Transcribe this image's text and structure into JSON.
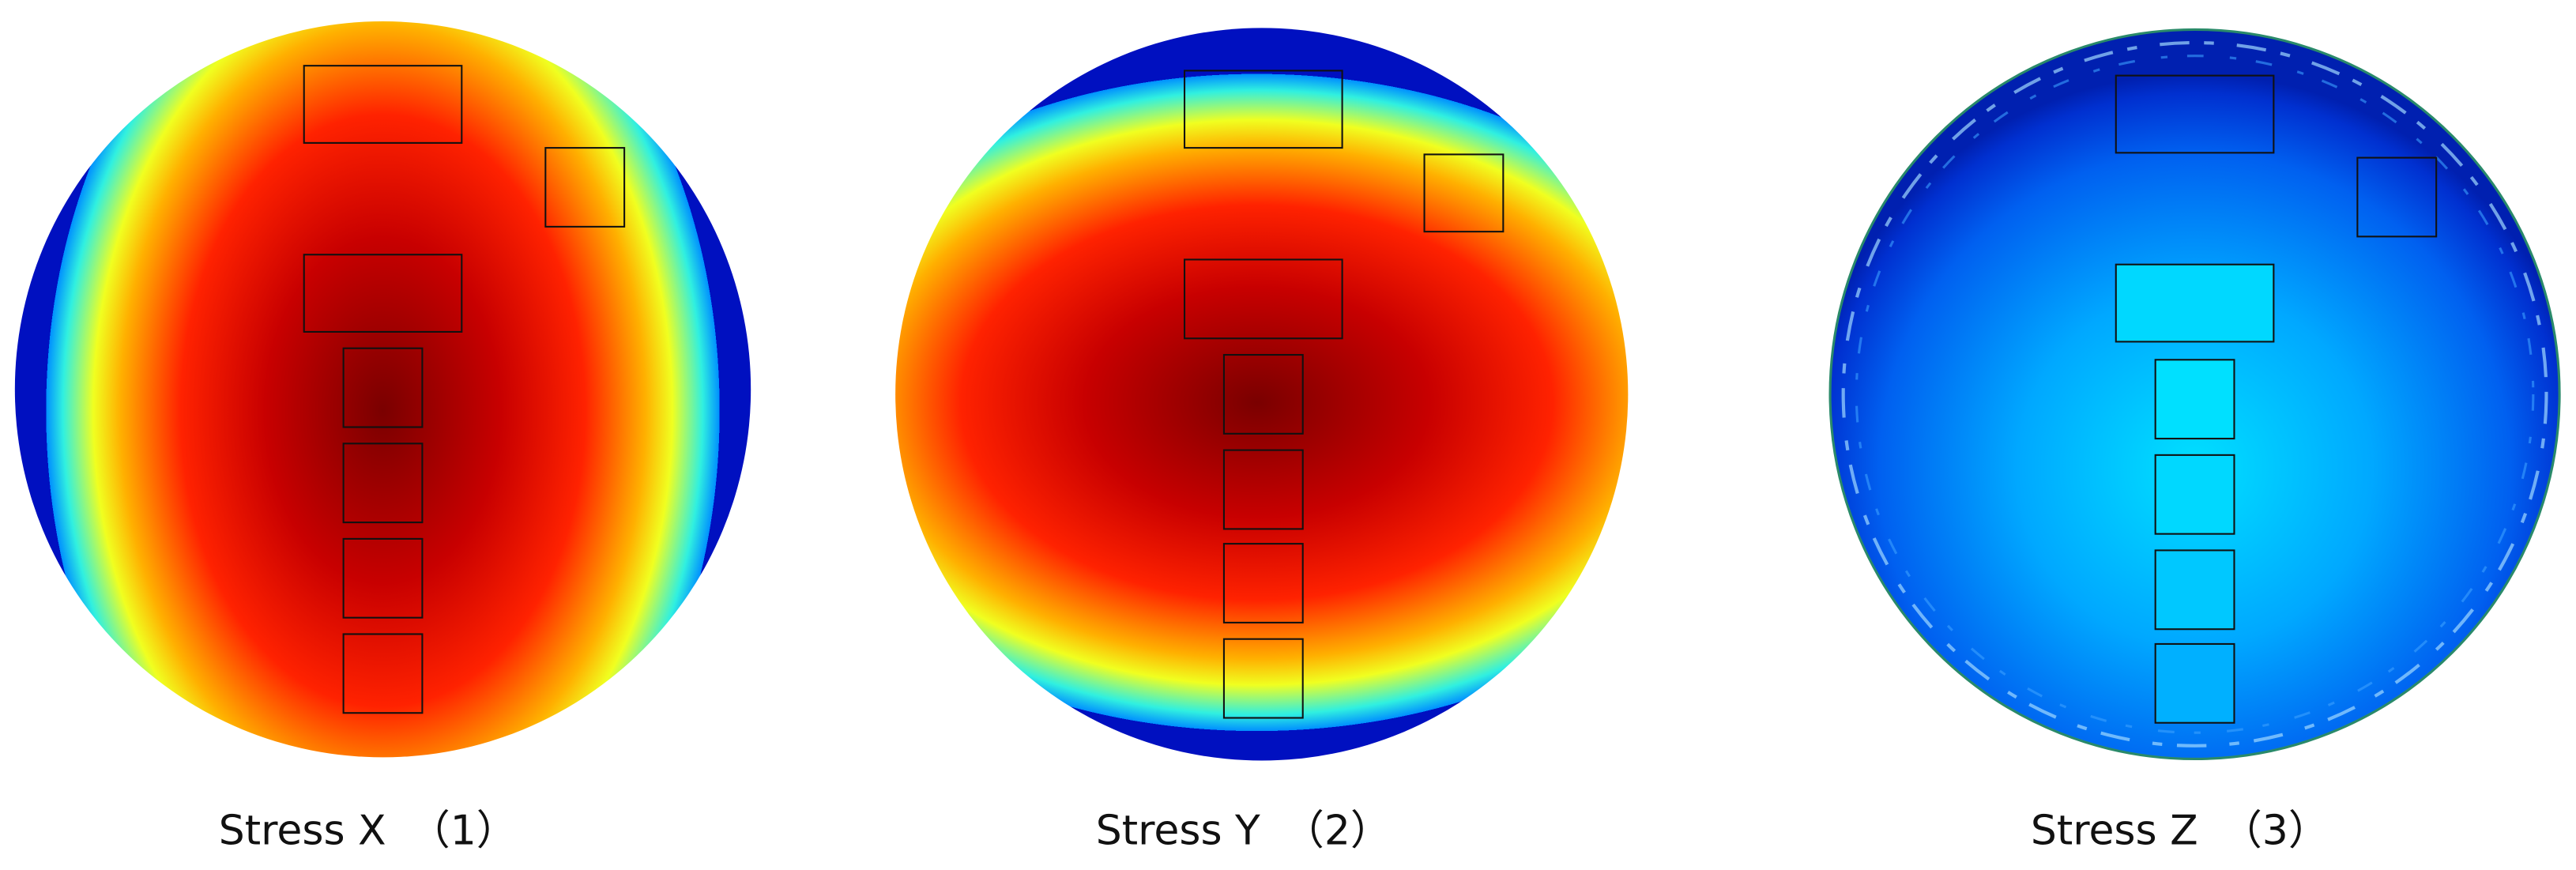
{
  "panels": [
    {
      "caption": "Stress X",
      "number": "（1）"
    },
    {
      "caption": "Stress Y",
      "number": "（2）"
    },
    {
      "caption": "Stress Z",
      "number": "（3）"
    }
  ]
}
